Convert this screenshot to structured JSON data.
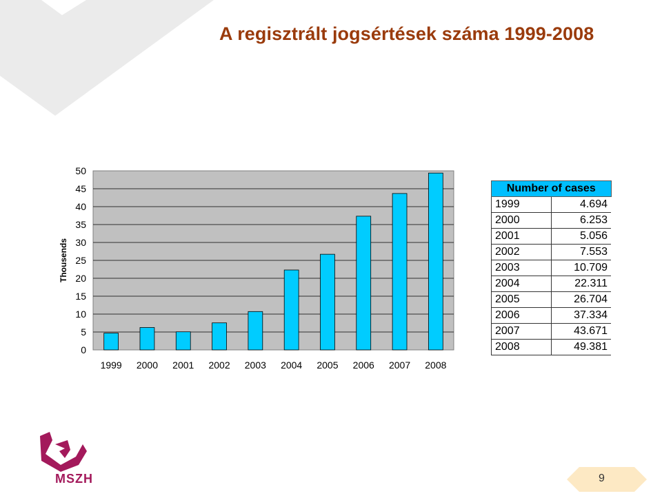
{
  "slide": {
    "title": "A regisztrált jogsértések száma 1999-2008",
    "page_number": "9",
    "logo_text": "MSZH"
  },
  "chart_data": {
    "type": "bar",
    "categories": [
      "1999",
      "2000",
      "2001",
      "2002",
      "2003",
      "2004",
      "2005",
      "2006",
      "2007",
      "2008"
    ],
    "values": [
      4.694,
      6.253,
      5.056,
      7.553,
      10.709,
      22.311,
      26.704,
      37.334,
      43.671,
      49.381
    ],
    "ylabel": "Thousends",
    "xlabel": "",
    "ylim": [
      0,
      50
    ],
    "yticks": [
      0,
      5,
      10,
      15,
      20,
      25,
      30,
      35,
      40,
      45,
      50
    ],
    "grid": true,
    "bar_color": "#00ccff",
    "plot_background": "#c0c0c0"
  },
  "table": {
    "header": "Number of cases",
    "rows": [
      {
        "year": "1999",
        "value": "4.694"
      },
      {
        "year": "2000",
        "value": "6.253"
      },
      {
        "year": "2001",
        "value": "5.056"
      },
      {
        "year": "2002",
        "value": "7.553"
      },
      {
        "year": "2003",
        "value": "10.709"
      },
      {
        "year": "2004",
        "value": "22.311"
      },
      {
        "year": "2005",
        "value": "26.704"
      },
      {
        "year": "2006",
        "value": "37.334"
      },
      {
        "year": "2007",
        "value": "43.671"
      },
      {
        "year": "2008",
        "value": "49.381"
      }
    ]
  },
  "colors": {
    "title": "#9a3b0c",
    "table_header": "#00bfff",
    "logo": "#a3195b"
  }
}
